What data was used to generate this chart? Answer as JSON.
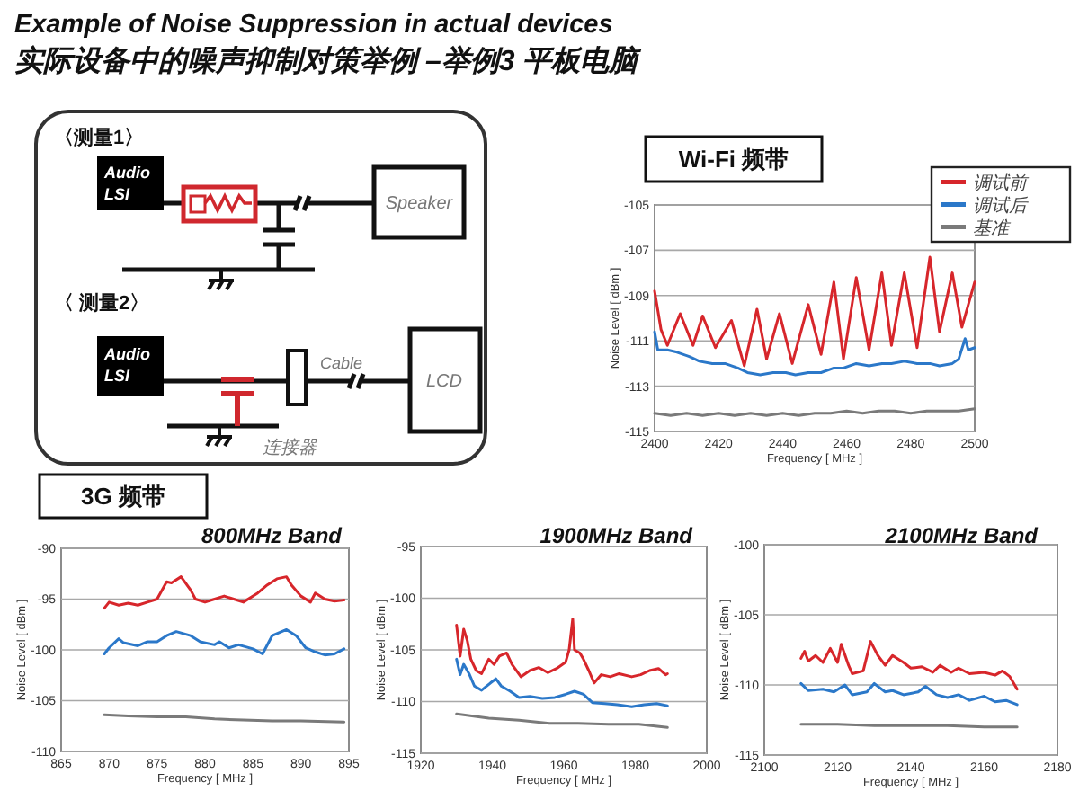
{
  "chart_data": [
    {
      "type": "other",
      "title": "Example of Noise Suppression in actual devices",
      "subtitle": "实际设备中的噪声抑制对策举例 –举例3 平板电脑",
      "annotations": [
        "〈测量1〉",
        "Audio LSI",
        "Speaker",
        "〈 测量2〉",
        "Audio LSI",
        "Cable",
        "LCD",
        "连接器"
      ]
    },
    {
      "type": "line",
      "title": "Wi-Fi 频带",
      "xlabel": "Frequency [ MHz ]",
      "ylabel": "Noise Level [ dBm ]",
      "xlim": [
        2400,
        2500
      ],
      "xticks": [
        2400,
        2420,
        2440,
        2460,
        2480,
        2500
      ],
      "ylim": [
        -115,
        -105
      ],
      "yticks": [
        -115,
        -113,
        -111,
        -109,
        -107,
        -105
      ],
      "grid": "y",
      "legend": "top right",
      "series": [
        {
          "name": "调试前",
          "color": "#d7262b",
          "x": [
            2400,
            2402,
            2404,
            2408,
            2412,
            2415,
            2419,
            2424,
            2428,
            2432,
            2435,
            2439,
            2443,
            2448,
            2452,
            2456,
            2459,
            2463,
            2467,
            2471,
            2474,
            2478,
            2482,
            2486,
            2489,
            2493,
            2496,
            2500
          ],
          "values": [
            -108.8,
            -110.5,
            -111.2,
            -109.8,
            -111.2,
            -109.9,
            -111.3,
            -110.1,
            -112.1,
            -109.6,
            -111.8,
            -109.8,
            -112.0,
            -109.4,
            -111.6,
            -108.4,
            -111.8,
            -108.2,
            -111.4,
            -108.0,
            -111.2,
            -108.0,
            -111.3,
            -107.3,
            -110.6,
            -108.0,
            -110.4,
            -108.4
          ]
        },
        {
          "name": "调试后",
          "color": "#2b78c9",
          "x": [
            2400,
            2401,
            2404,
            2407,
            2411,
            2414,
            2418,
            2422,
            2426,
            2429,
            2433,
            2437,
            2441,
            2444,
            2448,
            2452,
            2456,
            2459,
            2463,
            2467,
            2471,
            2474,
            2478,
            2482,
            2486,
            2489,
            2493,
            2495,
            2497,
            2498,
            2500
          ],
          "values": [
            -110.6,
            -111.4,
            -111.4,
            -111.5,
            -111.7,
            -111.9,
            -112.0,
            -112.0,
            -112.2,
            -112.4,
            -112.5,
            -112.4,
            -112.4,
            -112.5,
            -112.4,
            -112.4,
            -112.2,
            -112.2,
            -112.0,
            -112.1,
            -112.0,
            -112.0,
            -111.9,
            -112.0,
            -112.0,
            -112.1,
            -112.0,
            -111.8,
            -110.9,
            -111.4,
            -111.3
          ]
        },
        {
          "name": "基准",
          "color": "#7a7a7a",
          "x": [
            2400,
            2405,
            2410,
            2415,
            2420,
            2425,
            2430,
            2435,
            2440,
            2445,
            2450,
            2455,
            2460,
            2465,
            2470,
            2475,
            2480,
            2485,
            2490,
            2495,
            2500
          ],
          "values": [
            -114.2,
            -114.3,
            -114.2,
            -114.3,
            -114.2,
            -114.3,
            -114.2,
            -114.3,
            -114.2,
            -114.3,
            -114.2,
            -114.2,
            -114.1,
            -114.2,
            -114.1,
            -114.1,
            -114.2,
            -114.1,
            -114.1,
            -114.1,
            -114.0
          ]
        }
      ]
    },
    {
      "type": "other",
      "title": "3G 频带"
    },
    {
      "type": "line",
      "title": "800MHz Band",
      "xlabel": "Frequency [ MHz ]",
      "ylabel": "Noise Level [ dBm ]",
      "xlim": [
        865,
        895
      ],
      "xticks": [
        865,
        870,
        875,
        880,
        885,
        890,
        895
      ],
      "ylim": [
        -110,
        -90
      ],
      "yticks": [
        -110,
        -105,
        -100,
        -95,
        -90
      ],
      "grid": "y",
      "series": [
        {
          "color": "#d7262b",
          "x": [
            869.5,
            870,
            871,
            872,
            873,
            874,
            875,
            876,
            876.5,
            877.5,
            878.5,
            879,
            880,
            881,
            882,
            883,
            884,
            885.5,
            886.5,
            887.5,
            888.5,
            889,
            890,
            891,
            891.5,
            892.5,
            893.5,
            894.5
          ],
          "values": [
            -95.9,
            -95.3,
            -95.6,
            -95.4,
            -95.6,
            -95.3,
            -95.0,
            -93.3,
            -93.4,
            -92.8,
            -94.1,
            -95.0,
            -95.3,
            -95.0,
            -94.7,
            -95.0,
            -95.3,
            -94.4,
            -93.6,
            -93.0,
            -92.8,
            -93.6,
            -94.7,
            -95.3,
            -94.4,
            -95.0,
            -95.2,
            -95.1
          ]
        },
        {
          "color": "#2b78c9",
          "x": [
            869.5,
            870,
            871,
            871.5,
            873,
            874,
            875,
            876,
            877,
            878.5,
            879.5,
            881,
            881.5,
            882.5,
            883.5,
            885,
            886,
            887,
            888.5,
            889.5,
            890.5,
            891.5,
            892.5,
            893.5,
            894.5
          ],
          "values": [
            -100.4,
            -99.8,
            -98.9,
            -99.3,
            -99.6,
            -99.2,
            -99.2,
            -98.6,
            -98.2,
            -98.6,
            -99.2,
            -99.5,
            -99.2,
            -99.8,
            -99.5,
            -99.9,
            -100.4,
            -98.6,
            -98.0,
            -98.6,
            -99.8,
            -100.2,
            -100.5,
            -100.4,
            -99.9
          ]
        },
        {
          "color": "#7a7a7a",
          "x": [
            869.5,
            872,
            875,
            878,
            881,
            884,
            887,
            890,
            894.5
          ],
          "values": [
            -106.4,
            -106.5,
            -106.6,
            -106.6,
            -106.8,
            -106.9,
            -107.0,
            -107.0,
            -107.1
          ]
        }
      ]
    },
    {
      "type": "line",
      "title": "1900MHz Band",
      "xlabel": "Frequency [ MHz ]",
      "ylabel": "Noise Level [ dBm ]",
      "xlim": [
        1920,
        2000
      ],
      "xticks": [
        1920,
        1940,
        1960,
        1980,
        2000
      ],
      "ylim": [
        -115,
        -95
      ],
      "yticks": [
        -115,
        -110,
        -105,
        -100,
        -95
      ],
      "grid": "y",
      "series": [
        {
          "color": "#d7262b",
          "x": [
            1930,
            1931,
            1932,
            1933,
            1934,
            1935.5,
            1937,
            1939,
            1940.5,
            1942,
            1944,
            1945.5,
            1948,
            1950.5,
            1953,
            1955.5,
            1958,
            1960.5,
            1961.5,
            1962.5,
            1963,
            1964.5,
            1965.5,
            1967,
            1968.5,
            1970.5,
            1973,
            1975.5,
            1979,
            1981.5,
            1984,
            1986.5,
            1988.5,
            1989
          ],
          "values": [
            -102.6,
            -105.6,
            -103.0,
            -104.1,
            -105.9,
            -107.0,
            -107.3,
            -105.9,
            -106.4,
            -105.6,
            -105.3,
            -106.4,
            -107.6,
            -107.0,
            -106.7,
            -107.2,
            -106.8,
            -106.2,
            -105.0,
            -102.0,
            -105.0,
            -105.3,
            -105.9,
            -107.0,
            -108.2,
            -107.4,
            -107.6,
            -107.3,
            -107.6,
            -107.4,
            -107.0,
            -106.8,
            -107.4,
            -107.3
          ]
        },
        {
          "color": "#2b78c9",
          "x": [
            1930,
            1931,
            1932,
            1933.5,
            1935,
            1937,
            1939.5,
            1941,
            1942.5,
            1945,
            1947.5,
            1950.5,
            1954,
            1957.5,
            1960.5,
            1963,
            1965.5,
            1968,
            1971.5,
            1975,
            1979,
            1982.5,
            1986,
            1989
          ],
          "values": [
            -105.9,
            -107.4,
            -106.4,
            -107.3,
            -108.5,
            -108.9,
            -108.2,
            -107.8,
            -108.5,
            -109.0,
            -109.6,
            -109.5,
            -109.7,
            -109.6,
            -109.3,
            -109.0,
            -109.3,
            -110.1,
            -110.2,
            -110.3,
            -110.5,
            -110.3,
            -110.2,
            -110.4
          ]
        },
        {
          "color": "#7a7a7a",
          "x": [
            1930,
            1939,
            1947.5,
            1956,
            1964,
            1972.5,
            1981,
            1989
          ],
          "values": [
            -111.2,
            -111.6,
            -111.8,
            -112.1,
            -112.1,
            -112.2,
            -112.2,
            -112.5
          ]
        }
      ]
    },
    {
      "type": "line",
      "title": "2100MHz Band",
      "xlabel": "Frequency [ MHz ]",
      "ylabel": "Noise Level [ dBm ]",
      "xlim": [
        2100,
        2180
      ],
      "xticks": [
        2100,
        2120,
        2140,
        2160,
        2180
      ],
      "ylim": [
        -115,
        -100
      ],
      "yticks": [
        -115,
        -110,
        -105,
        -100
      ],
      "grid": "y",
      "series": [
        {
          "color": "#d7262b",
          "x": [
            2110,
            2111,
            2112,
            2114,
            2116,
            2118,
            2120,
            2121,
            2123,
            2124,
            2127,
            2129,
            2131,
            2133,
            2135,
            2138,
            2140,
            2143,
            2146,
            2148,
            2151,
            2153,
            2156,
            2160,
            2163,
            2165,
            2167,
            2169
          ],
          "values": [
            -108.1,
            -107.6,
            -108.3,
            -107.9,
            -108.4,
            -107.4,
            -108.4,
            -107.1,
            -108.6,
            -109.2,
            -109.0,
            -106.9,
            -107.9,
            -108.6,
            -107.9,
            -108.4,
            -108.8,
            -108.7,
            -109.1,
            -108.6,
            -109.1,
            -108.8,
            -109.2,
            -109.1,
            -109.3,
            -109.0,
            -109.4,
            -110.3
          ]
        },
        {
          "color": "#2b78c9",
          "x": [
            2110,
            2112,
            2116,
            2119,
            2122,
            2124,
            2128,
            2130,
            2133,
            2135,
            2138,
            2142,
            2144,
            2147,
            2150,
            2153,
            2156,
            2160,
            2163,
            2166,
            2169
          ],
          "values": [
            -109.9,
            -110.4,
            -110.3,
            -110.5,
            -110.0,
            -110.7,
            -110.5,
            -109.9,
            -110.5,
            -110.4,
            -110.7,
            -110.5,
            -110.1,
            -110.7,
            -110.9,
            -110.7,
            -111.1,
            -110.8,
            -111.2,
            -111.1,
            -111.4
          ]
        },
        {
          "color": "#7a7a7a",
          "x": [
            2110,
            2120,
            2130,
            2140,
            2150,
            2160,
            2169
          ],
          "values": [
            -112.8,
            -112.8,
            -112.9,
            -112.9,
            -112.9,
            -113.0,
            -113.0
          ]
        }
      ]
    }
  ]
}
